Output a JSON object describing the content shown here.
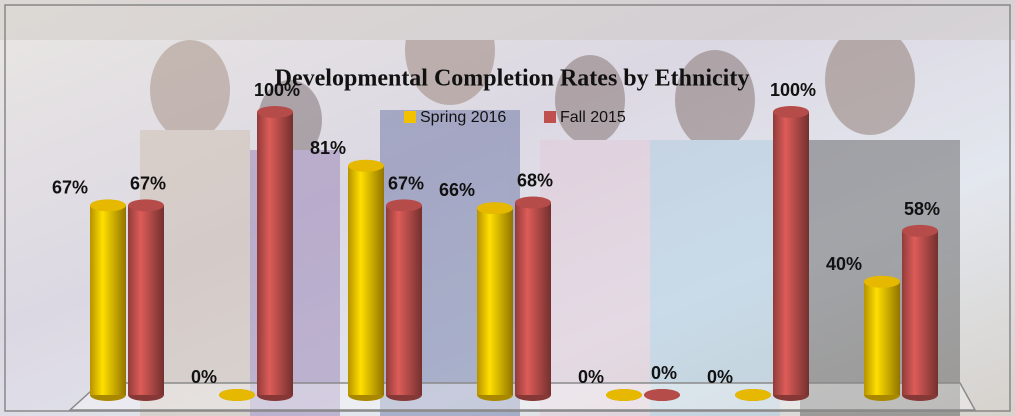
{
  "chart_data": {
    "type": "bar3d",
    "title": "Developmental Completion Rates by Ethnicity",
    "categories": [
      null,
      null,
      null,
      null,
      null,
      null,
      null
    ],
    "series": [
      {
        "name": "Spring 2016",
        "color": "#f2c200",
        "values": [
          67,
          0,
          81,
          66,
          0,
          0,
          40
        ],
        "value_labels": [
          "67%",
          "0%",
          "81%",
          "66%",
          "0%",
          "0%",
          "40%"
        ]
      },
      {
        "name": "Fall 2015",
        "color": "#c0504d",
        "values": [
          67,
          100,
          67,
          68,
          0,
          100,
          58
        ],
        "value_labels": [
          "67%",
          "100%",
          "67%",
          "68%",
          "0%",
          "100%",
          "58%"
        ]
      }
    ],
    "legend": "top"
  }
}
